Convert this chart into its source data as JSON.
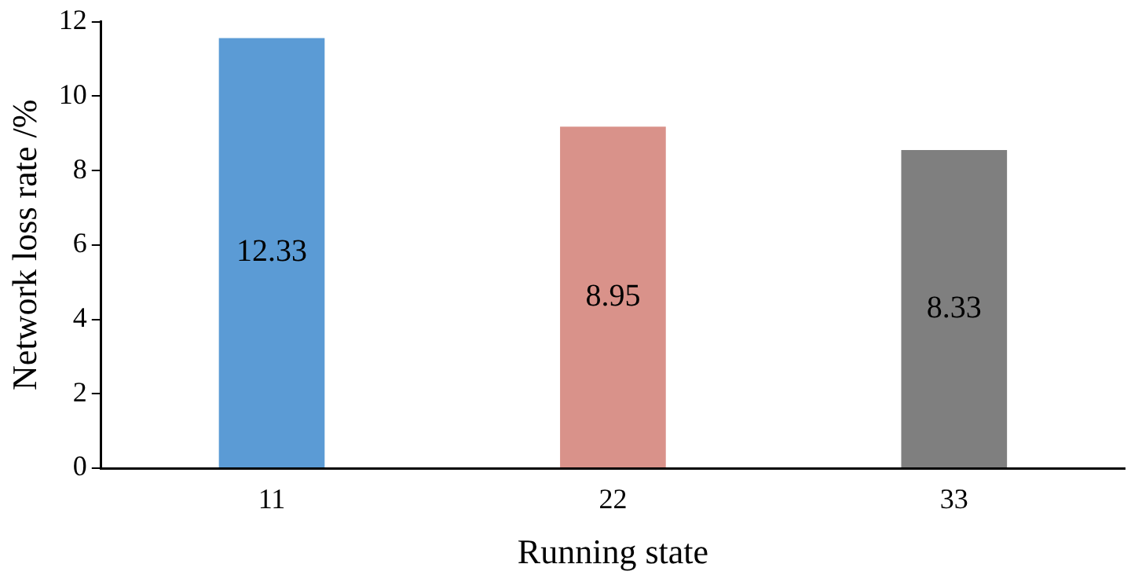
{
  "chart_data": {
    "type": "bar",
    "xlabel": "Running state",
    "ylabel": "Network loss rate /%",
    "categories": [
      "11",
      "22",
      "33"
    ],
    "values": [
      11.56,
      9.18,
      8.55
    ],
    "colors": [
      "#5b9bd5",
      "#d9928a",
      "#7f7f7f"
    ],
    "annotations": [
      "12.33",
      "8.95",
      "8.33"
    ],
    "ylim": [
      0,
      12
    ],
    "yticks": [
      0,
      2,
      4,
      6,
      8,
      10,
      12
    ],
    "grid": false,
    "legend": false
  }
}
